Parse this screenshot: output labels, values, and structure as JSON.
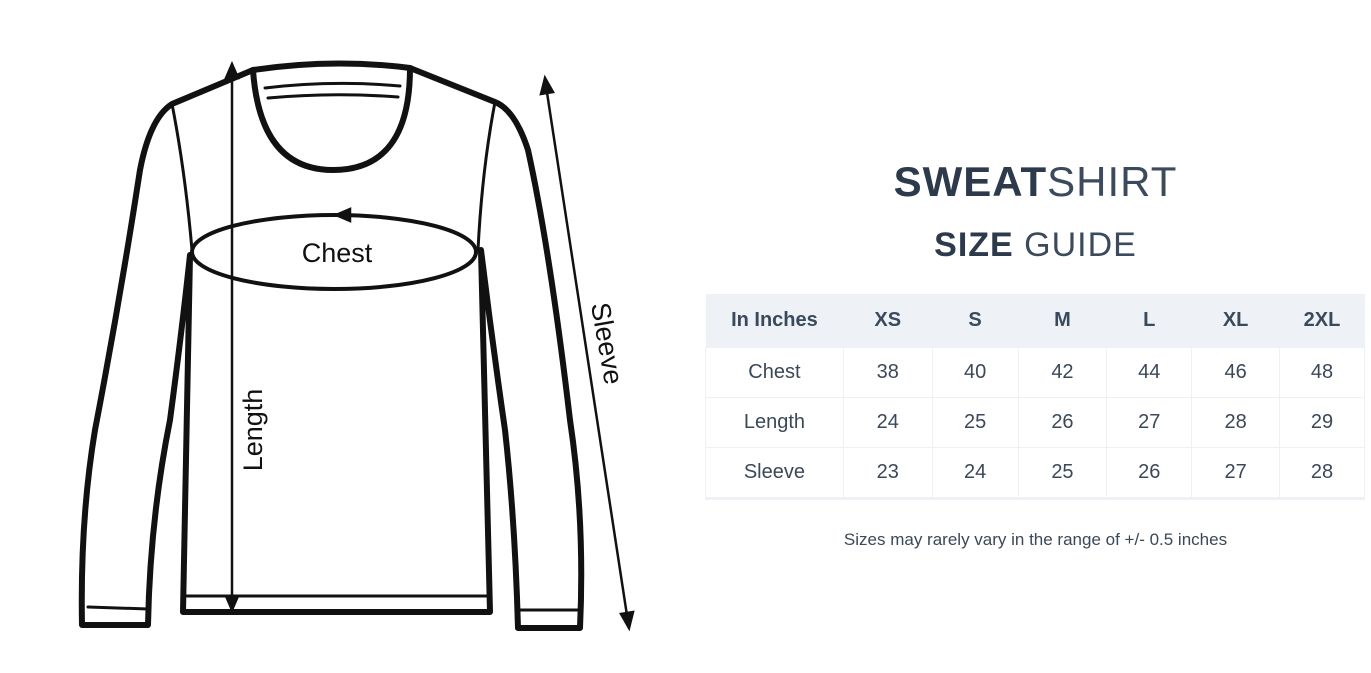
{
  "diagram": {
    "chest_label": "Chest",
    "length_label": "Length",
    "sleeve_label": "Sleeve"
  },
  "title": {
    "line1_bold": "SWEAT",
    "line1_light": "SHIRT",
    "line2_bold": "SIZE",
    "line2_light": " GUIDE"
  },
  "table": {
    "headers": [
      "In Inches",
      "XS",
      "S",
      "M",
      "L",
      "XL",
      "2XL"
    ],
    "rows": [
      {
        "label": "Chest",
        "values": [
          "38",
          "40",
          "42",
          "44",
          "46",
          "48"
        ]
      },
      {
        "label": "Length",
        "values": [
          "24",
          "25",
          "26",
          "27",
          "28",
          "29"
        ]
      },
      {
        "label": "Sleeve",
        "values": [
          "23",
          "24",
          "25",
          "26",
          "27",
          "28"
        ]
      }
    ]
  },
  "note": "Sizes may rarely vary in the range of +/- 0.5 inches",
  "colors": {
    "text": "#2c3a4b",
    "header_bg": "#eef2f7"
  }
}
